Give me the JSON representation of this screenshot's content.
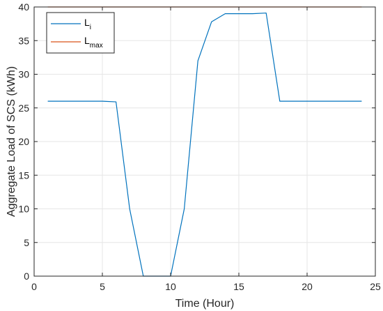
{
  "chart_data": {
    "type": "line",
    "xlabel": "Time (Hour)",
    "ylabel": "Aggregate Load of SCS (kWh)",
    "xlim": [
      0,
      25
    ],
    "ylim": [
      0,
      40
    ],
    "xticks": [
      0,
      5,
      10,
      15,
      20,
      25
    ],
    "yticks": [
      0,
      5,
      10,
      15,
      20,
      25,
      30,
      35,
      40
    ],
    "grid": true,
    "legend_position": "top-left",
    "series": [
      {
        "name": "L",
        "name_sub": "i",
        "color": "#0072BD",
        "x": [
          1,
          2,
          3,
          4,
          5,
          6,
          7,
          8,
          9,
          10,
          11,
          12,
          13,
          14,
          15,
          16,
          17,
          18,
          19,
          20,
          21,
          22,
          23,
          24
        ],
        "y": [
          26,
          26,
          26,
          26,
          26,
          25.9,
          10,
          0,
          0,
          0,
          10,
          32,
          37.8,
          39,
          39,
          39,
          39.1,
          26,
          26,
          26,
          26,
          26,
          26,
          26
        ]
      },
      {
        "name": "L",
        "name_sub": "max",
        "color": "#D95319",
        "x": [
          1,
          24
        ],
        "y": [
          40,
          40
        ]
      }
    ]
  }
}
